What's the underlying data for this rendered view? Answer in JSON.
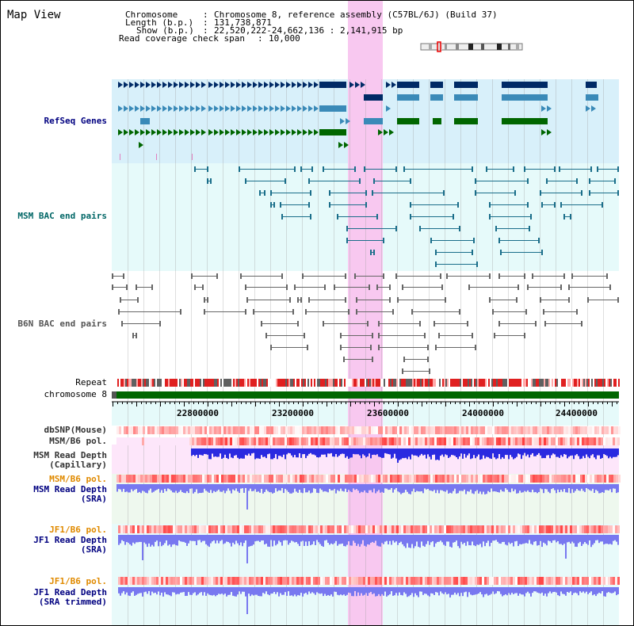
{
  "title": "Map View",
  "header": {
    "chromosome_label": "Chromosome",
    "chromosome_value": "Chromosome 8, reference assembly (C57BL/6J) (Build 37)",
    "length_label": "Length (b.p.)",
    "length_value": "131,738,871",
    "show_label": "Show (b.p.)",
    "show_value": "22,520,222-24,662,136 : 2,141,915 bp",
    "coverage_label": "Read coverage check span",
    "coverage_value": "10,000"
  },
  "tracks": {
    "refseq": "RefSeq Genes",
    "msm_bac": "MSM BAC end pairs",
    "b6n_bac": "B6N BAC end pairs",
    "repeat": "Repeat",
    "chromosome": "chromosome 8",
    "dbsnp": "dbSNP(Mouse)",
    "msm_b6_pol": "MSM/B6 pol.",
    "msm_depth_cap_1": "MSM Read Depth",
    "msm_depth_cap_2": "(Capillary)",
    "msm_b6_pol_2": "MSM/B6 pol.",
    "msm_depth_sra_1": "MSM Read Depth",
    "msm_depth_sra_2": "(SRA)",
    "jf1_b6_pol": "JF1/B6 pol.",
    "jf1_depth_sra_1": "JF1 Read Depth",
    "jf1_depth_sra_2": "(SRA)",
    "jf1_b6_pol_2": "JF1/B6 pol.",
    "jf1_depth_trim_1": "JF1 Read Depth",
    "jf1_depth_trim_2": "(SRA trimmed)"
  },
  "axis": {
    "ticks": [
      "22800000",
      "23200000",
      "23600000",
      "24000000",
      "24400000"
    ]
  },
  "colors": {
    "highlight": "#f8c8f0",
    "refseq_bg": "#d8f0fa",
    "msm_bg": "#e6fafa",
    "dark_blue": "#002a66",
    "mid_blue": "#3a8ab8",
    "green": "#006600",
    "teal": "#1a6e8a",
    "gray": "#666666",
    "depth_blue": "#2a2ae0",
    "depth_light": "#7878f0",
    "label_blue": "#000080",
    "label_orange": "#e08a00"
  }
}
